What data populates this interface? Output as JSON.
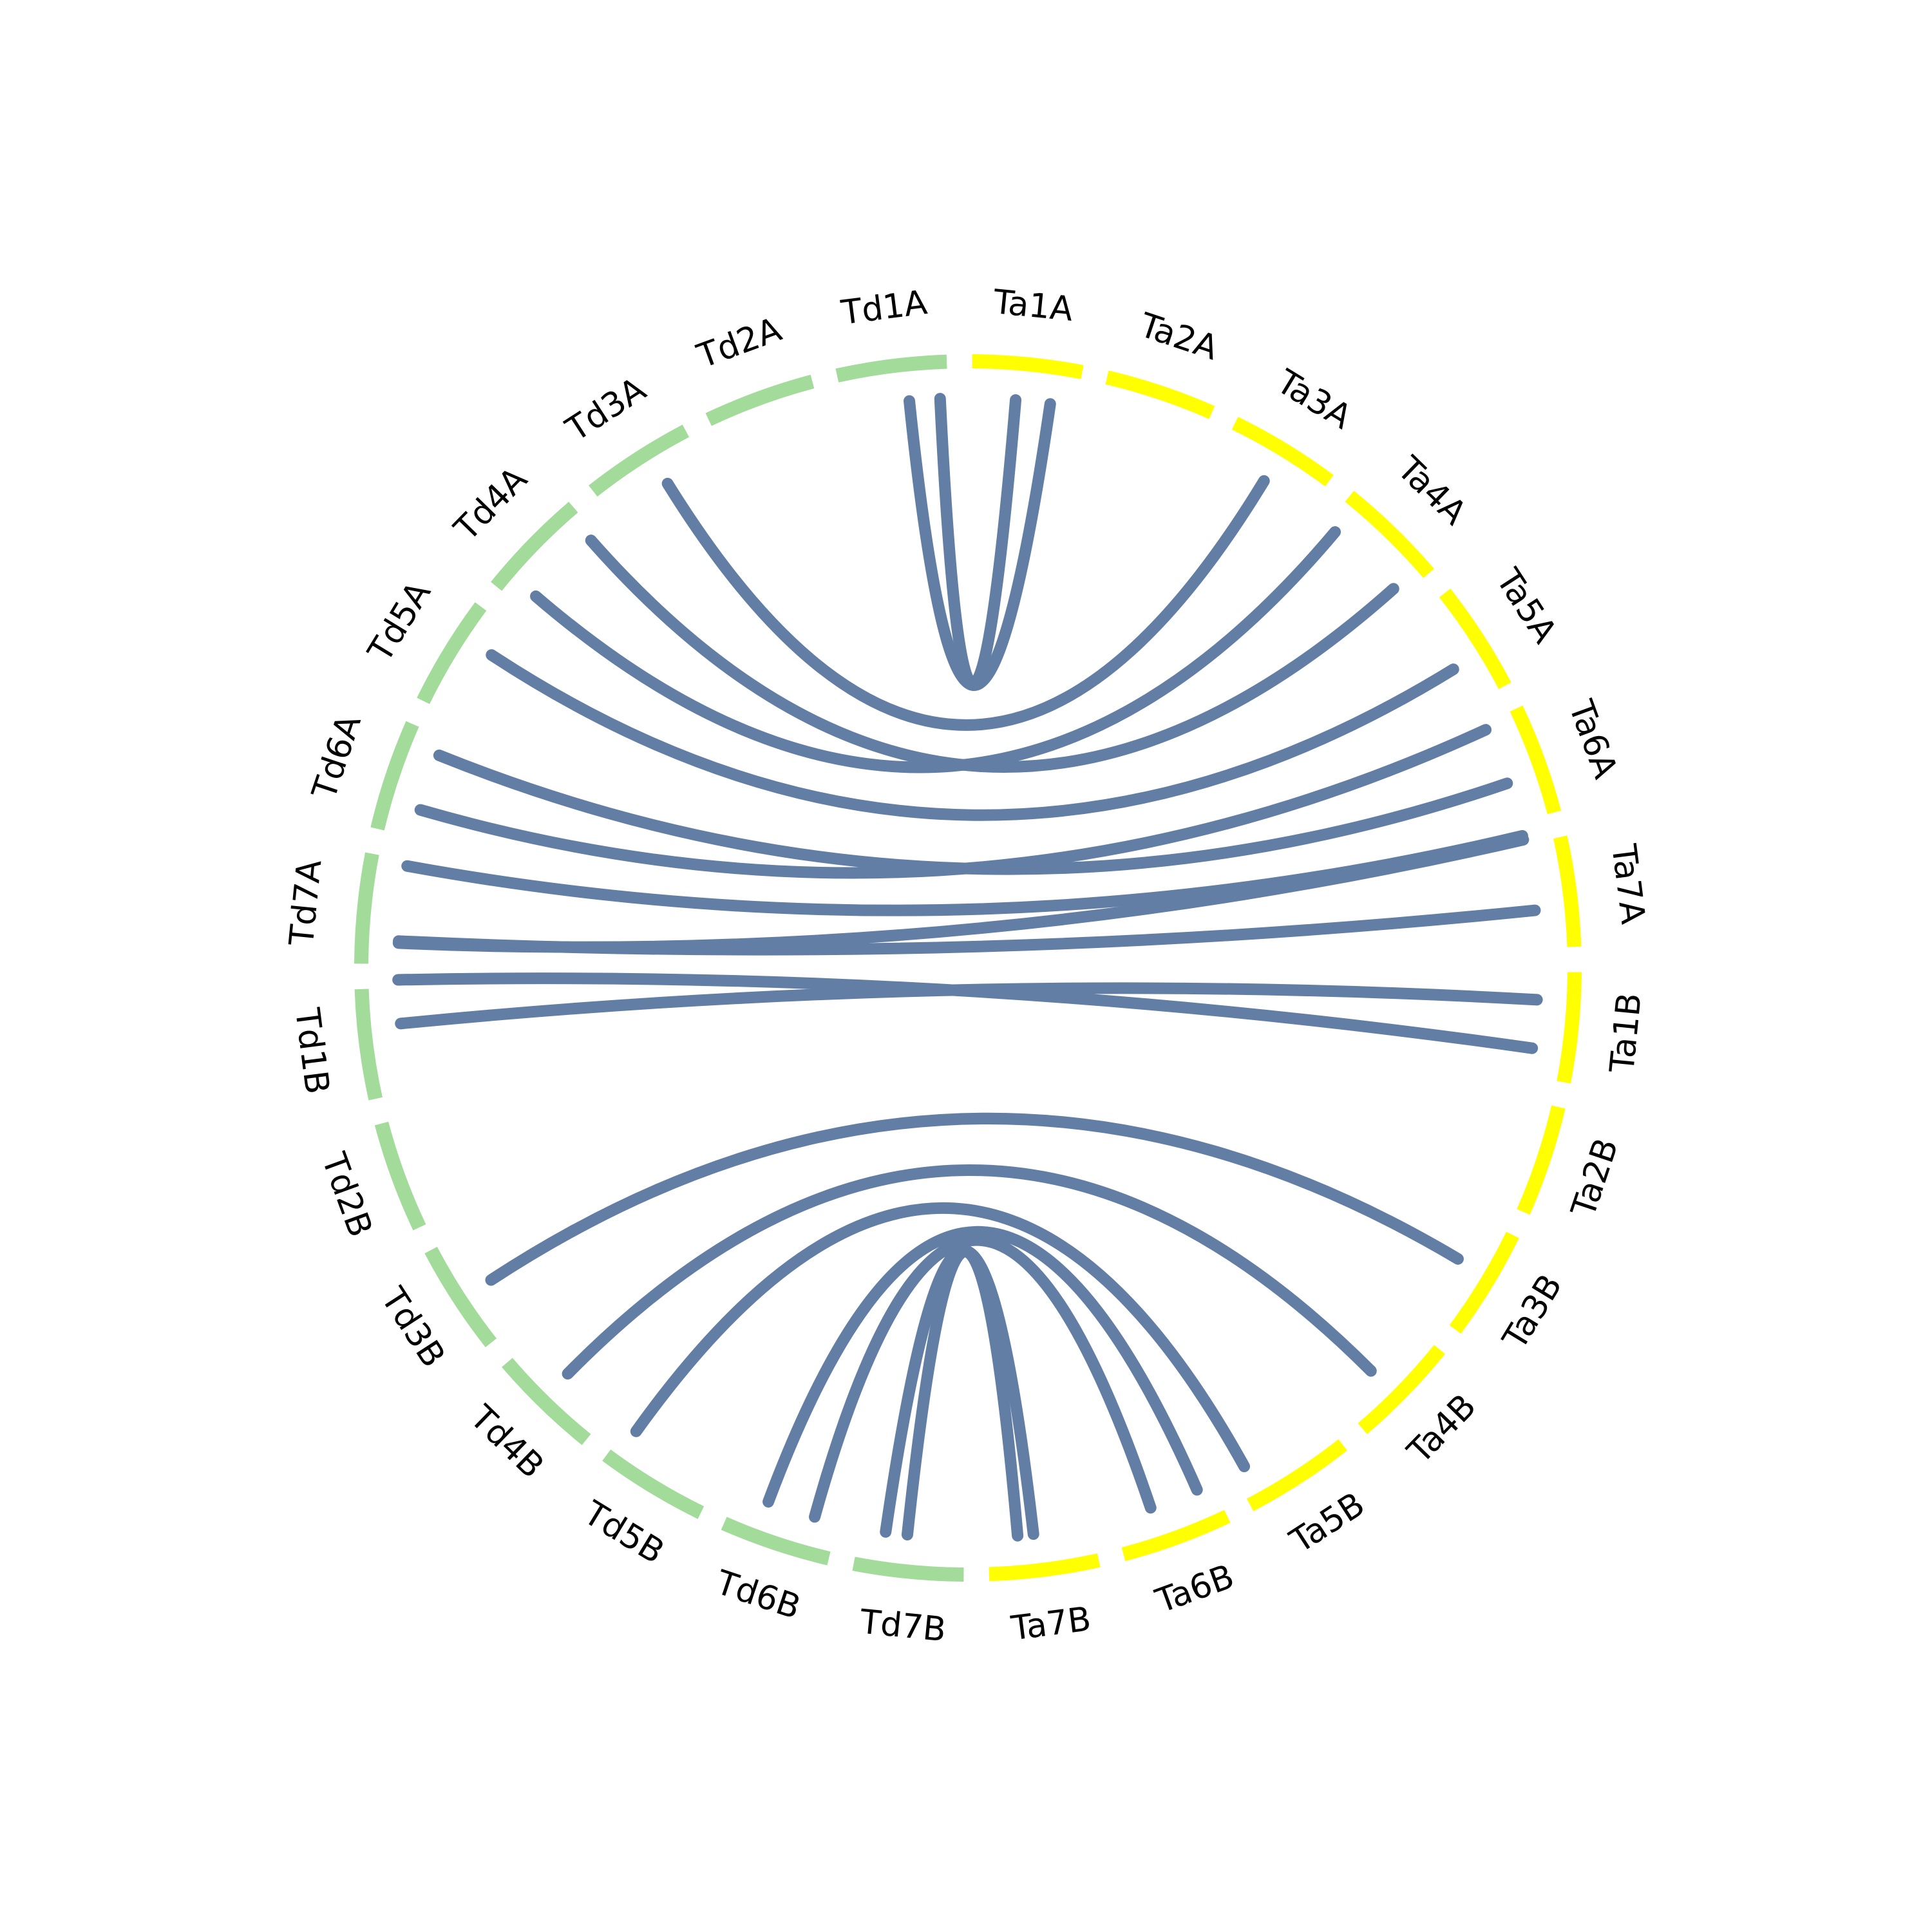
{
  "groups": [
    {
      "color": "#ffff00",
      "labels": [
        "Ta1A",
        "Ta2A",
        "Ta3A",
        "Ta4A",
        "Ta5A",
        "Ta6A",
        "Ta7A",
        "Ta1B",
        "Ta2B",
        "Ta3B",
        "Ta4B",
        "Ta5B",
        "Ta6B",
        "Ta7B"
      ]
    },
    {
      "color": "#a3db9b",
      "labels": [
        "Td7B",
        "Td6B",
        "Td5B",
        "Td4B",
        "Td3B",
        "Td2B",
        "Td1B",
        "Td7A",
        "Td6A",
        "Td5A",
        "Td4A",
        "Td3A",
        "Td2A",
        "Td1A"
      ]
    }
  ]
}
